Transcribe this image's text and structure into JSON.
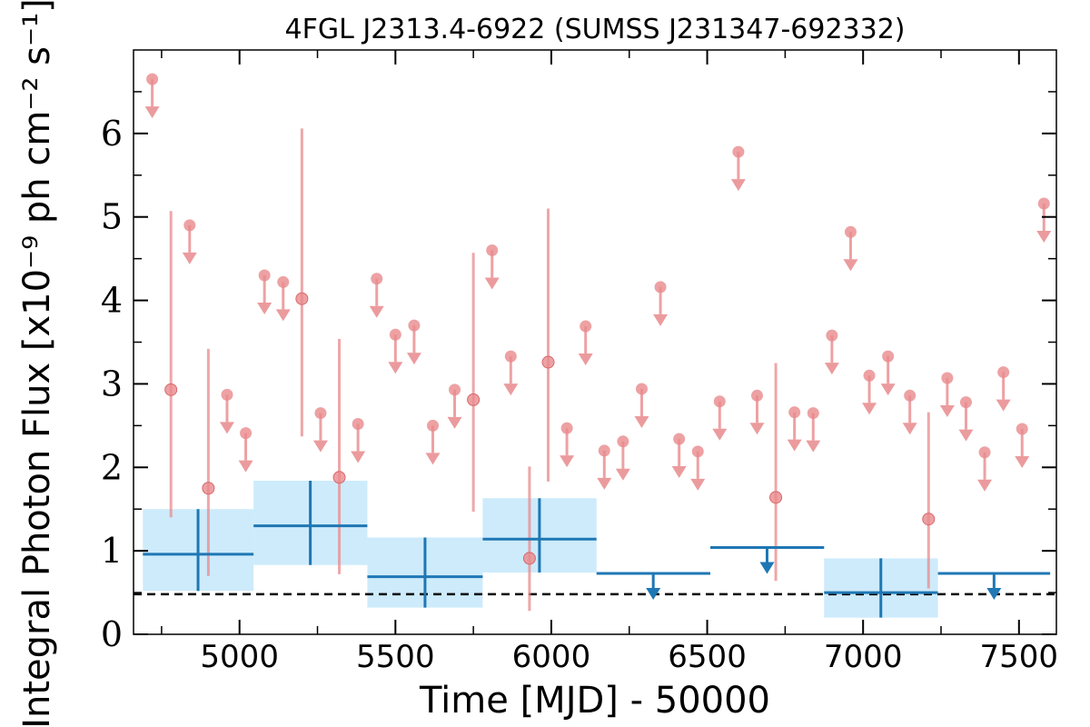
{
  "chart_data": {
    "type": "scatter",
    "title": "4FGL J2313.4-6922 (SUMSS J231347-692332)",
    "xlabel": "Time [MJD] - 50000",
    "ylabel": "Integral Photon Flux [x10⁻⁹ ph cm⁻² s⁻¹]",
    "xlim": [
      4660,
      7620
    ],
    "ylim": [
      0,
      7
    ],
    "xticks": [
      5000,
      5500,
      6000,
      6500,
      7000,
      7500
    ],
    "yticks": [
      0,
      1,
      2,
      3,
      4,
      5,
      6
    ],
    "x_tick_labels": [
      "5000",
      "5500",
      "6000",
      "6500",
      "7000",
      "7500"
    ],
    "y_tick_labels": [
      "0",
      "1",
      "2",
      "3",
      "4",
      "5",
      "6"
    ],
    "reference_flux": 0.48,
    "colors": {
      "short_bins": "#e8898c",
      "long_bins": "#1f77b4",
      "long_band": "#cdebfb",
      "reference_line": "#000000"
    },
    "series": [
      {
        "bin": "short",
        "detections": [
          {
            "x": 4780,
            "y": 2.93,
            "ylo": 1.4,
            "yhi": 5.07
          },
          {
            "x": 4900,
            "y": 1.75,
            "ylo": 0.7,
            "yhi": 3.42
          },
          {
            "x": 5200,
            "y": 4.02,
            "ylo": 2.37,
            "yhi": 6.06
          },
          {
            "x": 5320,
            "y": 1.88,
            "ylo": 0.72,
            "yhi": 3.54
          },
          {
            "x": 5750,
            "y": 2.81,
            "ylo": 1.47,
            "yhi": 4.57
          },
          {
            "x": 5930,
            "y": 0.91,
            "ylo": 0.28,
            "yhi": 2.01
          },
          {
            "x": 5990,
            "y": 3.26,
            "ylo": 1.83,
            "yhi": 5.1
          },
          {
            "x": 6720,
            "y": 1.64,
            "ylo": 0.64,
            "yhi": 3.25
          },
          {
            "x": 7210,
            "y": 1.38,
            "ylo": 0.55,
            "yhi": 2.66
          }
        ],
        "upper_limits": [
          {
            "x": 4720,
            "y": 6.65
          },
          {
            "x": 4840,
            "y": 4.9
          },
          {
            "x": 4960,
            "y": 2.87
          },
          {
            "x": 5020,
            "y": 2.41
          },
          {
            "x": 5080,
            "y": 4.3
          },
          {
            "x": 5140,
            "y": 4.22
          },
          {
            "x": 5260,
            "y": 2.65
          },
          {
            "x": 5380,
            "y": 2.52
          },
          {
            "x": 5440,
            "y": 4.26
          },
          {
            "x": 5500,
            "y": 3.59
          },
          {
            "x": 5560,
            "y": 3.7
          },
          {
            "x": 5620,
            "y": 2.5
          },
          {
            "x": 5690,
            "y": 2.93
          },
          {
            "x": 5810,
            "y": 4.6
          },
          {
            "x": 5870,
            "y": 3.33
          },
          {
            "x": 6050,
            "y": 2.47
          },
          {
            "x": 6110,
            "y": 3.69
          },
          {
            "x": 6170,
            "y": 2.2
          },
          {
            "x": 6230,
            "y": 2.31
          },
          {
            "x": 6290,
            "y": 2.94
          },
          {
            "x": 6350,
            "y": 4.16
          },
          {
            "x": 6410,
            "y": 2.34
          },
          {
            "x": 6470,
            "y": 2.19
          },
          {
            "x": 6540,
            "y": 2.79
          },
          {
            "x": 6600,
            "y": 5.78
          },
          {
            "x": 6660,
            "y": 2.86
          },
          {
            "x": 6780,
            "y": 2.66
          },
          {
            "x": 6840,
            "y": 2.65
          },
          {
            "x": 6900,
            "y": 3.58
          },
          {
            "x": 6960,
            "y": 4.82
          },
          {
            "x": 7020,
            "y": 3.1
          },
          {
            "x": 7080,
            "y": 3.33
          },
          {
            "x": 7150,
            "y": 2.86
          },
          {
            "x": 7270,
            "y": 3.07
          },
          {
            "x": 7330,
            "y": 2.78
          },
          {
            "x": 7390,
            "y": 2.18
          },
          {
            "x": 7450,
            "y": 3.14
          },
          {
            "x": 7510,
            "y": 2.46
          },
          {
            "x": 7580,
            "y": 5.16
          }
        ]
      },
      {
        "bin": "long",
        "detections": [
          {
            "xmin": 4690,
            "xmax": 5045,
            "x": 4867,
            "y": 0.96,
            "ylo": 0.52,
            "yhi": 1.5
          },
          {
            "xmin": 5045,
            "xmax": 5410,
            "x": 5227,
            "y": 1.3,
            "ylo": 0.83,
            "yhi": 1.84
          },
          {
            "xmin": 5410,
            "xmax": 5780,
            "x": 5595,
            "y": 0.69,
            "ylo": 0.32,
            "yhi": 1.16
          },
          {
            "xmin": 5780,
            "xmax": 6145,
            "x": 5962,
            "y": 1.14,
            "ylo": 0.74,
            "yhi": 1.63
          },
          {
            "xmin": 6875,
            "xmax": 7240,
            "x": 7057,
            "y": 0.5,
            "ylo": 0.2,
            "yhi": 0.91
          }
        ],
        "upper_limits": [
          {
            "xmin": 6145,
            "xmax": 6510,
            "x": 6327,
            "y": 0.73
          },
          {
            "xmin": 6510,
            "xmax": 6875,
            "x": 6692,
            "y": 1.04
          },
          {
            "xmin": 7240,
            "xmax": 7600,
            "x": 7420,
            "y": 0.73
          }
        ]
      }
    ]
  }
}
